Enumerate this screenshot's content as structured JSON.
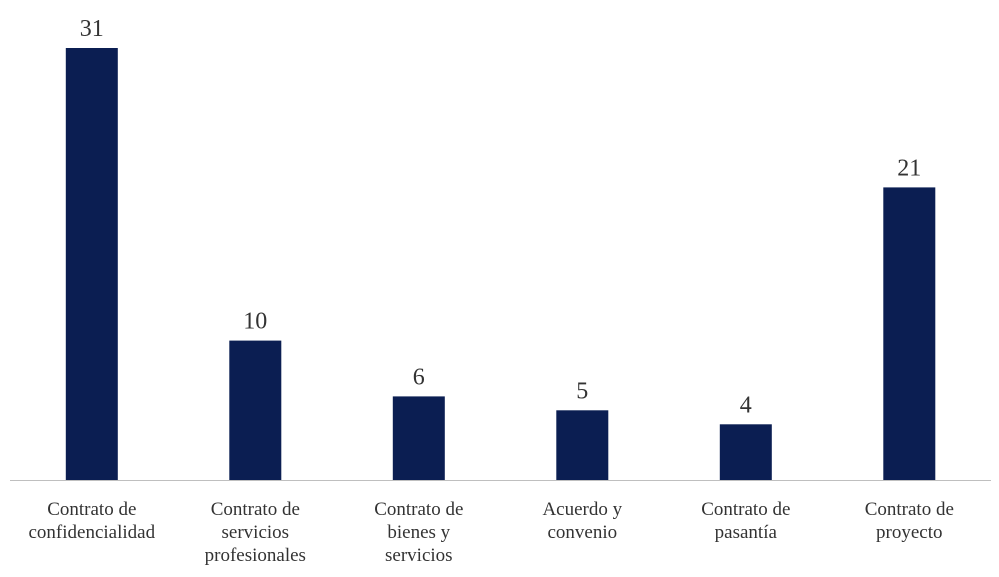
{
  "chart_data": {
    "type": "bar",
    "categories": [
      [
        "Contrato de",
        "confidencialidad"
      ],
      [
        "Contrato de",
        "servicios",
        "profesionales"
      ],
      [
        "Contrato de",
        "bienes y",
        "servicios"
      ],
      [
        "Acuerdo y",
        "convenio"
      ],
      [
        "Contrato de",
        "pasantía"
      ],
      [
        "Contrato de",
        "proyecto"
      ]
    ],
    "values": [
      31,
      10,
      6,
      5,
      4,
      21
    ],
    "data_labels": true,
    "ylim": [
      0,
      31
    ],
    "grid": false,
    "legend": "none",
    "bar_color": "#0b1e52",
    "axis_color": "#bfbfbf",
    "text_color": "#333333"
  }
}
